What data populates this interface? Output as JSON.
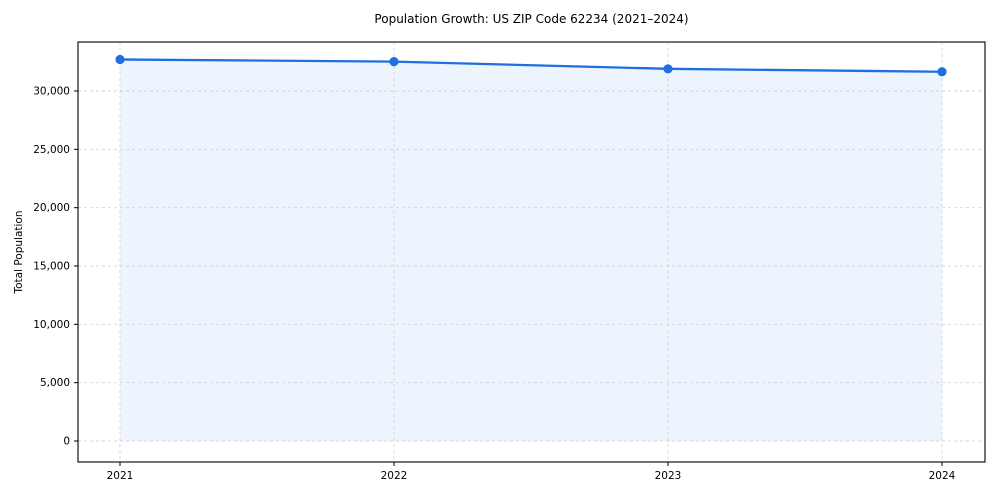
{
  "page": {
    "background": "#ffffff"
  },
  "chart_data": {
    "type": "area",
    "title": "Population Growth: US ZIP Code 62234 (2021–2024)",
    "xlabel": "",
    "ylabel": "Total Population",
    "x": [
      "2021",
      "2022",
      "2023",
      "2024"
    ],
    "series": [
      {
        "name": "Total Population",
        "values": [
          32700,
          32520,
          31900,
          31650
        ]
      }
    ],
    "yticks": [
      0,
      5000,
      10000,
      15000,
      20000,
      25000,
      30000
    ],
    "ylim": [
      -1800,
      34200
    ],
    "grid": true,
    "grid_style": "dashed",
    "legend": "none",
    "line_color": "#1f6fe0",
    "marker_color": "#1f6fe0",
    "fill_color": "#e9f1fc"
  }
}
